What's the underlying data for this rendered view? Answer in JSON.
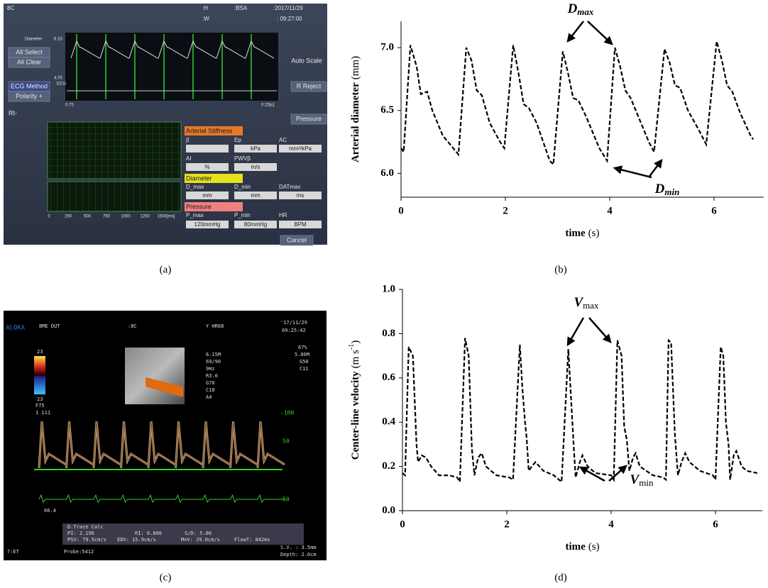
{
  "captions": [
    "(a)",
    "(b)",
    "(c)",
    "(d)"
  ],
  "panel_a": {
    "labels": [
      "8C",
      ":H",
      ":BSA",
      ":2017/11/29",
      ":W",
      ": 09:27:00",
      "Diameter",
      "6.10",
      "All Select",
      "All Clear",
      "4.70",
      "ECG",
      "ECG Method",
      "Polarity +",
      "0.75",
      "0.25[s]",
      "Auto Scale",
      "R Reject",
      "Rt-",
      "Pressure",
      "Arterial Stiffness",
      "β",
      "Ep",
      "AC",
      "kPa",
      "mm²/kPa",
      "AI",
      "PWVβ",
      "%",
      "m/s",
      "Diameter",
      "D_max",
      "D_min",
      "DATmax",
      "mm",
      "mm",
      "ms",
      "Pressure",
      "P_max",
      "P_min",
      "HR",
      "120mmHg",
      "80mmHg",
      "BPM",
      "Cancel",
      "0",
      "250",
      "500",
      "750",
      "1000",
      "1250",
      "1500[ms]"
    ]
  },
  "panel_c": {
    "labels": [
      "ALOKA",
      "BME DUT",
      ":8C",
      "Y HR68",
      "'17/11/29",
      "09:25:42",
      "6.15M",
      "69/90",
      "9Hz",
      "R3.0",
      "G70",
      "C18",
      "A4",
      "67%",
      "5.00M",
      "G50",
      "C11",
      "23",
      "23",
      "F75",
      "1 111",
      "-100",
      "50",
      "50",
      "66.4",
      "D.Trace Calc",
      "PI: 2.196",
      "RI: 0.800",
      "S/D: 5.00",
      "PSV: 79.5cm/s",
      "EDV: 15.9cm/s",
      "MnV: 29.0cm/s",
      "FlowT: 842ms",
      "7:ET",
      "Probe:5412",
      "S.V. : 3.5mm",
      "Depth: 2.0cm"
    ]
  },
  "chart_data": [
    {
      "type": "line",
      "line_style": "dashed",
      "color": "#000000",
      "xlabel": "time",
      "xlabel_unit": "(s)",
      "ylabel": "Arterial diameter",
      "ylabel_unit": "(mm)",
      "x": [
        0.0,
        0.05,
        0.18,
        0.3,
        0.38,
        0.5,
        0.6,
        0.8,
        1.0,
        1.1,
        1.25,
        1.35,
        1.45,
        1.55,
        1.7,
        1.9,
        1.98,
        2.15,
        2.25,
        2.35,
        2.45,
        2.6,
        2.85,
        2.92,
        3.1,
        3.2,
        3.3,
        3.4,
        3.55,
        3.8,
        3.95,
        4.1,
        4.2,
        4.3,
        4.4,
        4.55,
        4.75,
        4.85,
        5.05,
        5.15,
        5.25,
        5.35,
        5.5,
        5.7,
        5.85,
        6.05,
        6.15,
        6.25,
        6.35,
        6.5,
        6.7,
        6.75
      ],
      "values": [
        6.2,
        6.17,
        7.02,
        6.85,
        6.63,
        6.65,
        6.5,
        6.3,
        6.2,
        6.15,
        7.0,
        6.9,
        6.66,
        6.62,
        6.4,
        6.25,
        6.2,
        7.02,
        6.8,
        6.55,
        6.52,
        6.4,
        6.1,
        6.07,
        6.97,
        6.8,
        6.6,
        6.58,
        6.45,
        6.2,
        6.1,
        7.0,
        6.85,
        6.66,
        6.6,
        6.45,
        6.25,
        6.17,
        6.99,
        6.88,
        6.7,
        6.68,
        6.5,
        6.35,
        6.23,
        7.05,
        6.9,
        6.7,
        6.65,
        6.48,
        6.3,
        6.27
      ],
      "xlim": [
        0,
        6.95
      ],
      "ylim": [
        5.81,
        7.21
      ],
      "xticks": [
        0,
        2,
        4,
        6
      ],
      "yticks": [
        {
          "value": 6.0,
          "label": "6.0"
        },
        6.5,
        {
          "value": 7.0,
          "label": "7.0"
        }
      ],
      "annotations": [
        {
          "text": "D",
          "sub": "max"
        },
        {
          "text": "D",
          "sub": "min"
        }
      ]
    },
    {
      "type": "line",
      "line_style": "dashed",
      "color": "#000000",
      "xlabel": "time",
      "xlabel_unit": "(s)",
      "ylabel": "Center-line velocity",
      "ylabel_unit": "(m s",
      "ylabel_sup": "-1",
      "ylabel_end": ")",
      "x": [
        0.0,
        0.05,
        0.12,
        0.2,
        0.27,
        0.3,
        0.37,
        0.45,
        0.55,
        0.7,
        0.9,
        1.05,
        1.1,
        1.2,
        1.27,
        1.33,
        1.38,
        1.45,
        1.52,
        1.6,
        1.8,
        2.05,
        2.12,
        2.25,
        2.3,
        2.35,
        2.38,
        2.42,
        2.48,
        2.55,
        2.7,
        2.9,
        3.05,
        3.18,
        3.28,
        3.32,
        3.4,
        3.45,
        3.55,
        3.7,
        4.0,
        4.05,
        4.12,
        4.2,
        4.25,
        4.3,
        4.35,
        4.42,
        4.47,
        4.55,
        4.8,
        5.0,
        5.05,
        5.1,
        5.15,
        5.22,
        5.28,
        5.35,
        5.42,
        5.5,
        5.7,
        5.95,
        6.0,
        6.1,
        6.15,
        6.2,
        6.25,
        6.28,
        6.35,
        6.4,
        6.5,
        6.6,
        6.8
      ],
      "values": [
        0.17,
        0.16,
        0.74,
        0.7,
        0.3,
        0.22,
        0.25,
        0.24,
        0.2,
        0.16,
        0.16,
        0.15,
        0.13,
        0.78,
        0.7,
        0.28,
        0.16,
        0.24,
        0.26,
        0.2,
        0.16,
        0.15,
        0.14,
        0.75,
        0.55,
        0.4,
        0.33,
        0.18,
        0.2,
        0.22,
        0.18,
        0.16,
        0.13,
        0.73,
        0.3,
        0.15,
        0.22,
        0.25,
        0.2,
        0.17,
        0.16,
        0.14,
        0.77,
        0.7,
        0.38,
        0.32,
        0.18,
        0.24,
        0.26,
        0.2,
        0.16,
        0.15,
        0.14,
        0.77,
        0.76,
        0.35,
        0.16,
        0.22,
        0.26,
        0.22,
        0.18,
        0.16,
        0.14,
        0.74,
        0.7,
        0.4,
        0.3,
        0.14,
        0.25,
        0.27,
        0.2,
        0.18,
        0.17
      ],
      "xlim": [
        0,
        6.9
      ],
      "ylim": [
        0,
        1.0
      ],
      "xticks": [
        0,
        2,
        4,
        6
      ],
      "yticks": [
        {
          "value": 0,
          "label": "0.0"
        },
        0.2,
        0.4,
        0.6,
        0.8,
        {
          "value": 1.0,
          "label": "1.0"
        }
      ],
      "annotations": [
        {
          "text": "V",
          "sub": "max"
        },
        {
          "text": "V",
          "sub": "min"
        }
      ]
    }
  ]
}
